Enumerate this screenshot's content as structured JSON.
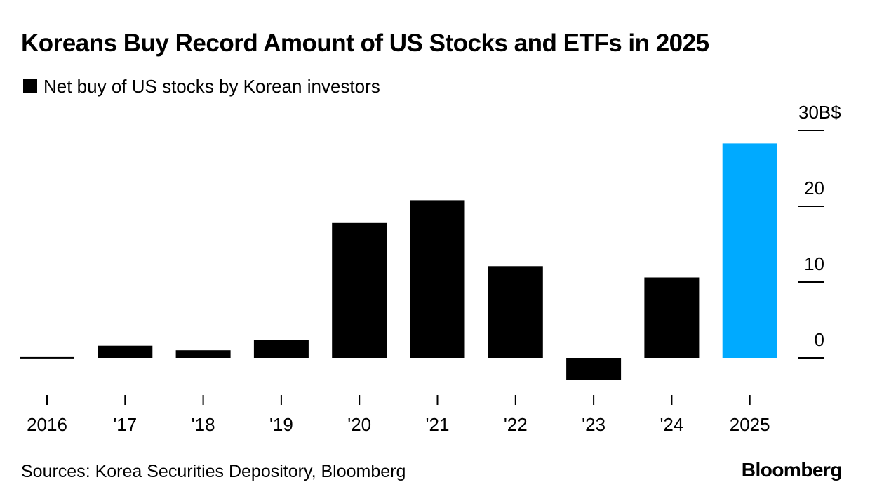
{
  "chart_data": {
    "type": "bar",
    "title": "Koreans Buy Record Amount of US Stocks and ETFs in 2025",
    "legend": [
      {
        "label": "Net buy of US stocks by Korean investors",
        "color": "#000000"
      }
    ],
    "categories": [
      "2016",
      "'17",
      "'18",
      "'19",
      "'20",
      "'21",
      "'22",
      "'23",
      "'24",
      "2025"
    ],
    "series": [
      {
        "name": "Net buy of US stocks by Korean investors",
        "values": [
          0.1,
          1.6,
          1.0,
          2.4,
          17.8,
          20.8,
          12.1,
          -2.9,
          10.6,
          28.3
        ]
      }
    ],
    "highlight": {
      "category": "2025",
      "color": "#00AAFF"
    },
    "bar_color": "#000000",
    "y_axis": {
      "position": "right",
      "ticks": [
        0,
        10,
        20,
        30
      ],
      "tick_labels": [
        "0",
        "10",
        "20",
        "30B$"
      ],
      "ylim": [
        -5,
        30
      ]
    },
    "grid": false
  },
  "footer": {
    "source": "Sources: Korea Securities Depository, Bloomberg",
    "logo": "Bloomberg"
  }
}
